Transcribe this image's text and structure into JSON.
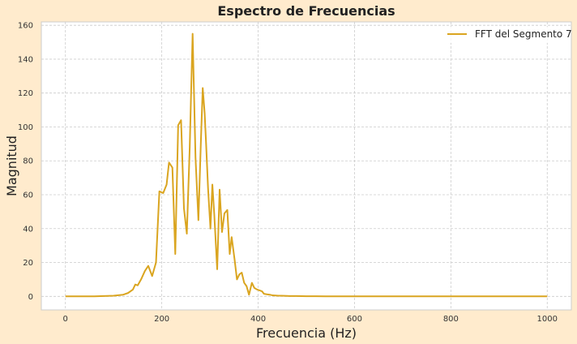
{
  "chart_data": {
    "type": "line",
    "title": "Espectro de Frecuencias",
    "xlabel": "Frecuencia (Hz)",
    "ylabel": "Magnitud",
    "xlim": [
      -50,
      1050
    ],
    "ylim": [
      -8,
      162
    ],
    "xticks": [
      0,
      200,
      400,
      600,
      800,
      1000
    ],
    "yticks": [
      0,
      20,
      40,
      60,
      80,
      100,
      120,
      140,
      160
    ],
    "grid": true,
    "legend_position": "top-right",
    "series": [
      {
        "name": "FFT del Segmento 7",
        "color": "#DAA520",
        "x": [
          0,
          20,
          40,
          60,
          80,
          100,
          120,
          130,
          140,
          145,
          150,
          157,
          165,
          172,
          180,
          188,
          195,
          203,
          210,
          215,
          222,
          228,
          234,
          240,
          246,
          252,
          258,
          264,
          270,
          276,
          281,
          285,
          289,
          292,
          296,
          301,
          305,
          309,
          315,
          320,
          325,
          330,
          336,
          341,
          345,
          351,
          356,
          361,
          366,
          371,
          376,
          381,
          387,
          392,
          398,
          403,
          408,
          412,
          418,
          424,
          430,
          436,
          442,
          448,
          455,
          465,
          480,
          500,
          520,
          540,
          560,
          580,
          600,
          650,
          700,
          800,
          900,
          1000
        ],
        "y": [
          0,
          0,
          0,
          0,
          0.2,
          0.4,
          1,
          2,
          4,
          7,
          6.5,
          10,
          15,
          18,
          12,
          20,
          62,
          61,
          66,
          79,
          76,
          25,
          101,
          104,
          52,
          37,
          88,
          155,
          82,
          45,
          90,
          123,
          108,
          90,
          64,
          40,
          66,
          48,
          16,
          63,
          38,
          49,
          51,
          25,
          35,
          22,
          10,
          13,
          14,
          8,
          6,
          1,
          8,
          5,
          4,
          3.5,
          3,
          1.5,
          1.2,
          1,
          0.6,
          0.5,
          0.4,
          0.4,
          0.3,
          0.2,
          0.2,
          0.1,
          0.1,
          0,
          0,
          0,
          0,
          0,
          0,
          0,
          0,
          0
        ]
      }
    ]
  }
}
